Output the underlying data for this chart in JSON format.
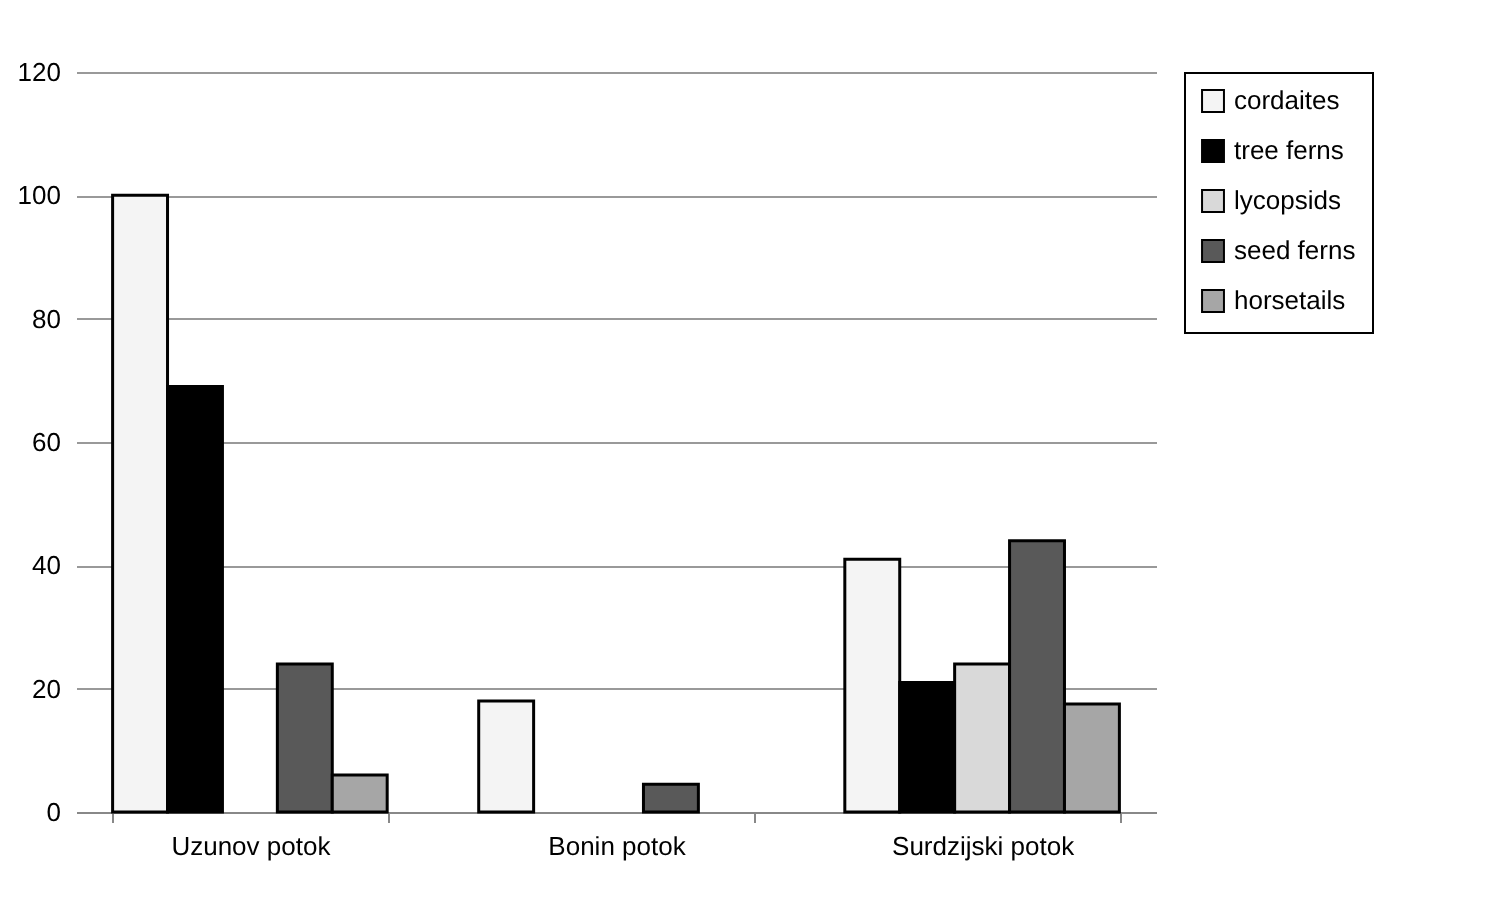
{
  "chart_data": {
    "type": "bar",
    "categories": [
      "Uzunov potok",
      "Bonin potok",
      "Surdzijski potok"
    ],
    "series": [
      {
        "name": "cordaites",
        "color": "#f4f4f4",
        "values": [
          100,
          18,
          41
        ]
      },
      {
        "name": "tree ferns",
        "color": "#000000",
        "values": [
          69,
          null,
          21
        ]
      },
      {
        "name": "lycopsids",
        "color": "#d9d9d9",
        "values": [
          null,
          null,
          24
        ]
      },
      {
        "name": "seed ferns",
        "color": "#595959",
        "values": [
          24,
          4.5,
          44
        ]
      },
      {
        "name": "horsetails",
        "color": "#a6a6a6",
        "values": [
          6,
          null,
          17.5
        ]
      }
    ],
    "ylim": [
      0,
      120
    ],
    "yticks": [
      0,
      20,
      40,
      60,
      80,
      100,
      120
    ],
    "grid": "y",
    "legend": "right"
  }
}
